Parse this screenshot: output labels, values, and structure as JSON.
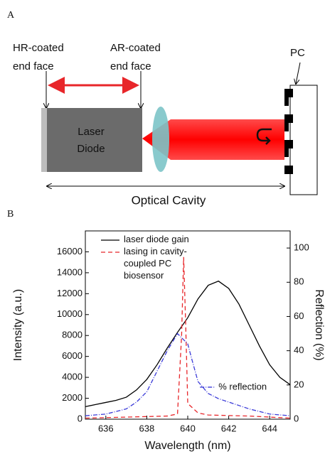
{
  "panel_a": {
    "panel_label": "A",
    "hr_label": [
      "HR-coated",
      "end face"
    ],
    "ar_label": [
      "AR-coated",
      "end face"
    ],
    "pc_label": "PC",
    "diode_label": [
      "Laser",
      "Diode"
    ],
    "cavity_label": "Optical Cavity"
  },
  "panel_b": {
    "panel_label": "B"
  },
  "chart_data": {
    "type": "line",
    "x_label": "Wavelength (nm)",
    "y_label": "Intensity (a.u.)",
    "y2_label": "Reflection (%)",
    "xlim": [
      635,
      645
    ],
    "xticks": [
      636,
      638,
      640,
      642,
      644
    ],
    "ylim": [
      0,
      18000
    ],
    "yticks": [
      0,
      2000,
      4000,
      6000,
      8000,
      10000,
      12000,
      14000,
      16000
    ],
    "y2lim": [
      0,
      110
    ],
    "y2ticks": [
      0,
      20,
      40,
      60,
      80,
      100
    ],
    "series": [
      {
        "name": "laser diode gain",
        "color": "#000000",
        "dash": "none",
        "x": [
          635,
          635.5,
          636,
          636.5,
          637,
          637.5,
          638,
          638.5,
          639,
          639.5,
          640,
          640.5,
          641,
          641.5,
          642,
          642.5,
          643,
          643.5,
          644,
          644.5,
          645
        ],
        "values": [
          1200,
          1400,
          1600,
          1800,
          2100,
          2800,
          3800,
          5200,
          6800,
          8300,
          9700,
          11500,
          12800,
          13200,
          12500,
          11000,
          9000,
          7000,
          5200,
          4000,
          3300
        ]
      },
      {
        "name": "lasing in cavity-coupled PC biosensor",
        "color": "#e8262a",
        "dash": "6,4",
        "x": [
          635,
          636,
          637,
          638,
          639,
          639.5,
          639.7,
          639.8,
          639.9,
          640,
          640.5,
          641,
          642,
          643,
          644,
          645
        ],
        "values": [
          100,
          150,
          200,
          250,
          300,
          500,
          8000,
          15500,
          9000,
          1500,
          600,
          400,
          350,
          300,
          200,
          100
        ]
      },
      {
        "name": "% reflection",
        "color": "#3a3ad8",
        "dash": "6,2,1,2",
        "axis": "y2",
        "x": [
          635,
          636,
          637,
          637.5,
          638,
          638.5,
          639,
          639.5,
          640,
          640.2,
          640.5,
          641,
          641.5,
          642,
          643,
          644,
          645
        ],
        "values": [
          2,
          3,
          6,
          10,
          16,
          28,
          40,
          50,
          44,
          35,
          22,
          15,
          12,
          10,
          6,
          3,
          2
        ]
      }
    ]
  }
}
